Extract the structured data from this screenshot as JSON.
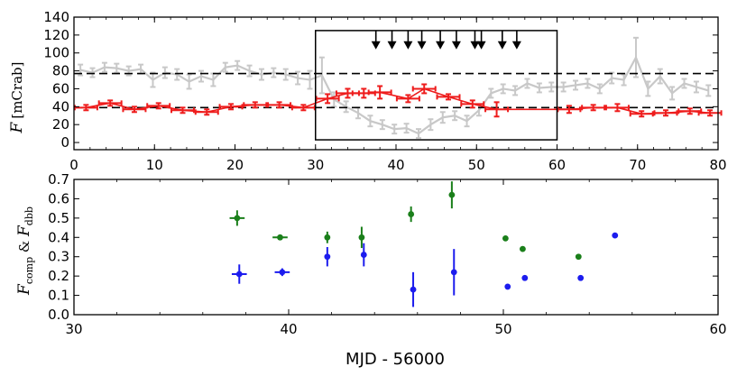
{
  "chart_data": [
    {
      "type": "line",
      "panel": "top",
      "title": "",
      "xlabel": "",
      "ylabel": "F",
      "ylabel_unit": "[mCrab]",
      "xlim": [
        0,
        80
      ],
      "ylim": [
        -8,
        140
      ],
      "xticks": [
        0,
        10,
        20,
        30,
        40,
        50,
        60,
        70,
        80
      ],
      "xtick_labels": [
        "0",
        "10",
        "20",
        "30",
        "40",
        "50",
        "60",
        "70",
        "80"
      ],
      "yticks": [
        0,
        20,
        40,
        60,
        80,
        100,
        120,
        140
      ],
      "ytick_labels": [
        "0",
        "20",
        "40",
        "60",
        "80",
        "100",
        "120",
        "140"
      ],
      "reference_lines": [
        77,
        39
      ],
      "highlight_box": {
        "x": [
          30,
          60
        ],
        "y": [
          3,
          125
        ]
      },
      "arrow_x": [
        37.5,
        39.5,
        41.5,
        43.2,
        45.5,
        47.5,
        49.8,
        50.6,
        53.2,
        55.0
      ],
      "series": [
        {
          "name": "gray",
          "color": "#c8c8c8",
          "x": [
            0.8,
            2.3,
            3.8,
            5.3,
            6.8,
            8.3,
            9.8,
            11.3,
            12.8,
            14.3,
            15.8,
            17.3,
            18.8,
            20.3,
            21.8,
            23.3,
            24.8,
            26.3,
            27.8,
            29.3,
            30.8,
            32.3,
            33.8,
            35.3,
            36.8,
            38.3,
            39.8,
            41.3,
            42.8,
            44.3,
            45.8,
            47.3,
            48.8,
            50.3,
            51.8,
            53.3,
            54.8,
            56.3,
            57.8,
            59.3,
            60.8,
            62.3,
            63.8,
            65.3,
            66.8,
            68.3,
            69.8,
            71.3,
            72.8,
            74.3,
            75.8,
            77.3,
            78.8
          ],
          "y": [
            81,
            78,
            84,
            83,
            80,
            82,
            70,
            78,
            76,
            68,
            74,
            70,
            84,
            86,
            80,
            76,
            78,
            76,
            72,
            70,
            75,
            48,
            40,
            33,
            24,
            20,
            15,
            16,
            10,
            20,
            28,
            30,
            24,
            36,
            55,
            60,
            58,
            66,
            61,
            62,
            62,
            64,
            66,
            60,
            72,
            70,
            95,
            60,
            74,
            55,
            66,
            62,
            58
          ],
          "err": [
            6,
            5,
            5,
            5,
            5,
            5,
            8,
            6,
            6,
            8,
            6,
            7,
            5,
            5,
            6,
            6,
            5,
            6,
            7,
            10,
            20,
            8,
            6,
            6,
            6,
            5,
            5,
            5,
            5,
            6,
            6,
            5,
            6,
            6,
            5,
            5,
            5,
            5,
            5,
            5,
            5,
            5,
            5,
            5,
            6,
            6,
            22,
            8,
            8,
            7,
            5,
            6,
            6
          ]
        },
        {
          "name": "red",
          "color": "#ee1c1c",
          "x": [
            1.5,
            4.5,
            7.5,
            10.5,
            13.5,
            16.5,
            19.5,
            22.5,
            25.5,
            28.5,
            31.5,
            34.0,
            36.0,
            38.0,
            41.5,
            43.5,
            46.5,
            49.5,
            52.5,
            61.5,
            64.5,
            67.5,
            70.5,
            73.5,
            76.5,
            79.0
          ],
          "y": [
            39,
            44,
            37,
            41,
            36,
            34,
            40,
            42,
            42,
            39,
            49,
            55,
            55,
            56,
            49,
            60,
            51,
            43,
            37,
            37,
            39,
            39,
            32,
            33,
            35,
            33
          ],
          "err": [
            3,
            3,
            3,
            3,
            3,
            3,
            3,
            3,
            3,
            3,
            5,
            5,
            5,
            7,
            4,
            5,
            3,
            4,
            8,
            4,
            3,
            4,
            3,
            3,
            3,
            3
          ],
          "xerr": 1.4
        }
      ]
    },
    {
      "type": "scatter",
      "panel": "bottom",
      "title": "",
      "xlabel": "MJD - 56000",
      "ylabel_main": "F",
      "ylabel_sub1": "comp",
      "ylabel_amp": " & ",
      "ylabel_sub2": "dbb",
      "xlim": [
        30,
        60
      ],
      "ylim": [
        0.0,
        0.7
      ],
      "xticks": [
        30,
        40,
        50,
        60
      ],
      "xtick_labels": [
        "30",
        "40",
        "50",
        "60"
      ],
      "yticks": [
        0.0,
        0.1,
        0.2,
        0.3,
        0.4,
        0.5,
        0.6,
        0.7
      ],
      "ytick_labels": [
        "0.0",
        "0.1",
        "0.2",
        "0.3",
        "0.4",
        "0.5",
        "0.6",
        "0.7"
      ],
      "series": [
        {
          "name": "green",
          "color": "#1a7f1a",
          "x": [
            37.6,
            39.6,
            41.8,
            43.4,
            45.7,
            47.6,
            50.1,
            50.9,
            53.5
          ],
          "y": [
            0.5,
            0.4,
            0.4,
            0.4,
            0.52,
            0.62,
            0.395,
            0.34,
            0.3
          ],
          "err": [
            0.04,
            0.01,
            0.03,
            0.055,
            0.04,
            0.07,
            0.0,
            0.0,
            0.0
          ],
          "xerr": [
            0.35,
            0.35,
            0.0,
            0.0,
            0.0,
            0.0,
            0.0,
            0.0,
            0.0
          ]
        },
        {
          "name": "blue",
          "color": "#1c1cee",
          "x": [
            37.7,
            39.7,
            41.8,
            43.5,
            45.8,
            47.7,
            50.2,
            51.0,
            53.6,
            55.2
          ],
          "y": [
            0.21,
            0.22,
            0.3,
            0.31,
            0.13,
            0.22,
            0.145,
            0.19,
            0.19,
            0.41
          ],
          "err": [
            0.05,
            0.02,
            0.05,
            0.06,
            0.09,
            0.12,
            0.0,
            0.0,
            0.0,
            0.0
          ],
          "xerr": [
            0.35,
            0.35,
            0.0,
            0.0,
            0.0,
            0.0,
            0.0,
            0.0,
            0.0,
            0.0
          ]
        }
      ]
    }
  ]
}
